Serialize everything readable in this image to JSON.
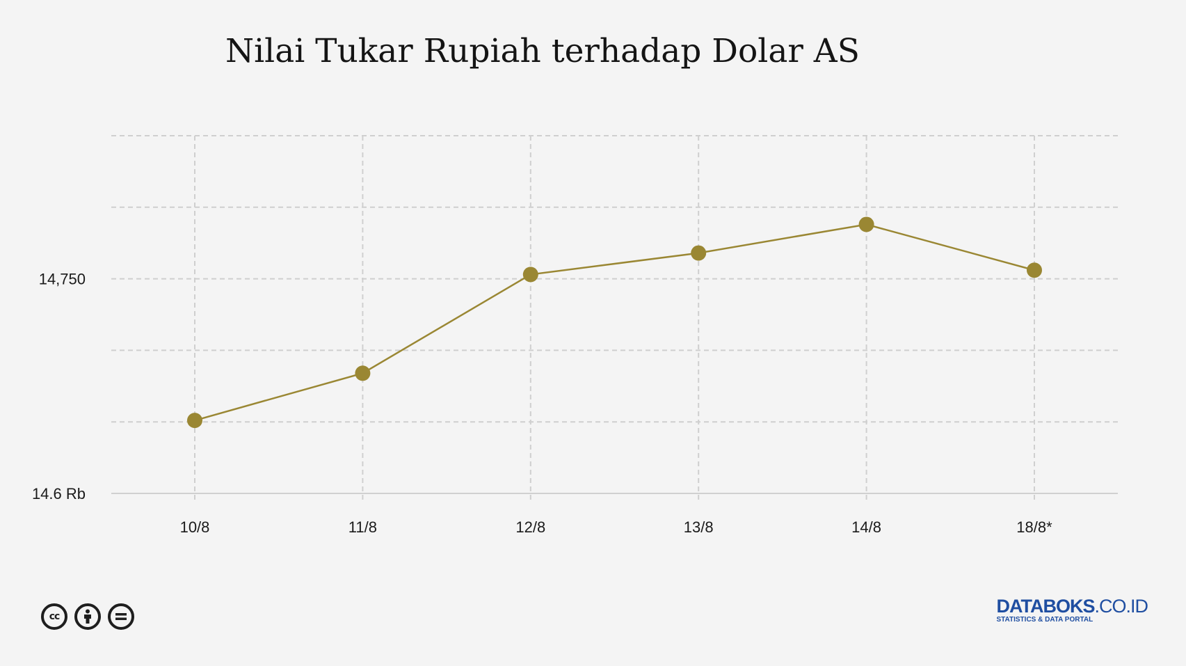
{
  "chart_data": {
    "type": "line",
    "title": "Nilai Tukar Rupiah terhadap Dolar AS",
    "xlabel": "",
    "ylabel": "",
    "categories": [
      "10/8",
      "11/8",
      "12/8",
      "13/8",
      "14/8",
      "18/8*"
    ],
    "series": [
      {
        "values": [
          14651,
          14684,
          14753,
          14768,
          14788,
          14756
        ],
        "color": "#9a8733"
      }
    ],
    "ylim": [
      14600,
      14850
    ],
    "y_ticks": [
      {
        "value": 14600,
        "label": "14.6 Rb"
      },
      {
        "value": 14750,
        "label": "14,750"
      }
    ],
    "grid": true,
    "legend": "none"
  },
  "footer": {
    "license_icons": [
      "cc-icon",
      "by-person-icon",
      "no-derivatives-icon"
    ],
    "brand_name_bold": "DATABOKS",
    "brand_name_rest": ".CO.ID",
    "brand_tagline": "STATISTICS & DATA PORTAL",
    "brand_color": "#1f4ea1"
  }
}
